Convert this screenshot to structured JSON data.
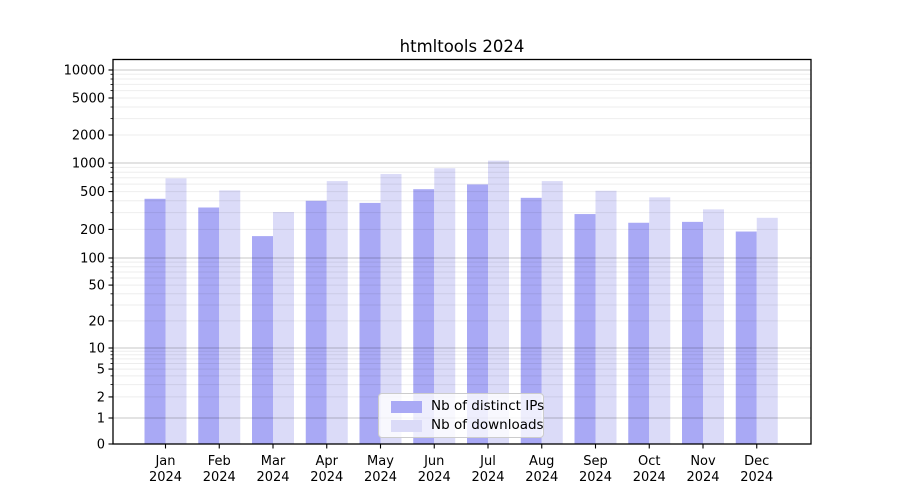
{
  "title": "htmltools 2024",
  "chart_data": {
    "type": "bar",
    "title": "htmltools 2024",
    "categories": [
      "Jan 2024",
      "Feb 2024",
      "Mar 2024",
      "Apr 2024",
      "May 2024",
      "Jun 2024",
      "Jul 2024",
      "Aug 2024",
      "Sep 2024",
      "Oct 2024",
      "Nov 2024",
      "Dec 2024"
    ],
    "series": [
      {
        "name": "Nb of distinct IPs",
        "color": "#a9a9f5",
        "values": [
          420,
          340,
          170,
          400,
          380,
          530,
          595,
          430,
          290,
          235,
          240,
          190
        ]
      },
      {
        "name": "Nb of downloads",
        "color": "#dbdbf8",
        "values": [
          690,
          515,
          305,
          645,
          765,
          880,
          1060,
          645,
          510,
          435,
          325,
          265
        ]
      }
    ],
    "yscale": "log",
    "y_ticks": [
      0,
      1,
      2,
      5,
      10,
      20,
      50,
      100,
      200,
      500,
      1000,
      2000,
      5000,
      10000
    ],
    "ylim": [
      0,
      13000
    ],
    "xlabel": "",
    "ylabel": "",
    "grid": "horizontal major and minor",
    "legend_position": "lower center",
    "colors": {
      "major_gridline": "#c7c7c7",
      "minor_gridline": "#ededed",
      "axis_spine": "#000000",
      "background": "#ffffff"
    }
  }
}
